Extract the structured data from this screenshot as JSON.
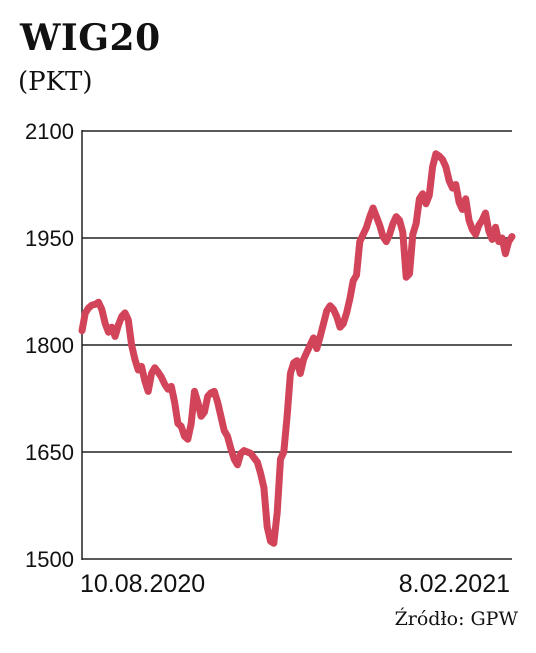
{
  "chart_data": {
    "type": "line",
    "title": "WIG20",
    "subtitle": "(PKT)",
    "source": "Źródło: GPW",
    "ylim": [
      1500,
      2100
    ],
    "yticks": [
      1500,
      1650,
      1800,
      1950,
      2100
    ],
    "grid": true,
    "x_labels": [
      "10.08.2020",
      "8.02.2021"
    ],
    "x_range": [
      "10.08.2020",
      "8.02.2021"
    ],
    "line_color": "#d2445a",
    "series": [
      {
        "values": [
          1820,
          1845,
          1852,
          1856,
          1857,
          1860,
          1850,
          1830,
          1818,
          1825,
          1812,
          1828,
          1840,
          1845,
          1835,
          1800,
          1780,
          1765,
          1770,
          1750,
          1735,
          1760,
          1768,
          1762,
          1755,
          1745,
          1738,
          1742,
          1720,
          1690,
          1686,
          1672,
          1668,
          1690,
          1735,
          1720,
          1700,
          1706,
          1728,
          1733,
          1735,
          1720,
          1700,
          1680,
          1672,
          1655,
          1640,
          1632,
          1648,
          1652,
          1650,
          1648,
          1642,
          1636,
          1620,
          1600,
          1545,
          1525,
          1522,
          1565,
          1640,
          1650,
          1700,
          1760,
          1775,
          1778,
          1760,
          1780,
          1790,
          1800,
          1810,
          1795,
          1812,
          1830,
          1848,
          1855,
          1850,
          1840,
          1825,
          1830,
          1845,
          1865,
          1890,
          1898,
          1945,
          1955,
          1965,
          1980,
          1992,
          1980,
          1968,
          1952,
          1945,
          1955,
          1970,
          1980,
          1975,
          1958,
          1895,
          1900,
          1955,
          1970,
          2005,
          2012,
          1998,
          2010,
          2050,
          2068,
          2065,
          2060,
          2050,
          2030,
          2020,
          2025,
          2000,
          1990,
          2005,
          1975,
          1962,
          1955,
          1968,
          1975,
          1985,
          1960,
          1948,
          1965,
          1945,
          1950,
          1928,
          1945,
          1952
        ]
      }
    ]
  }
}
